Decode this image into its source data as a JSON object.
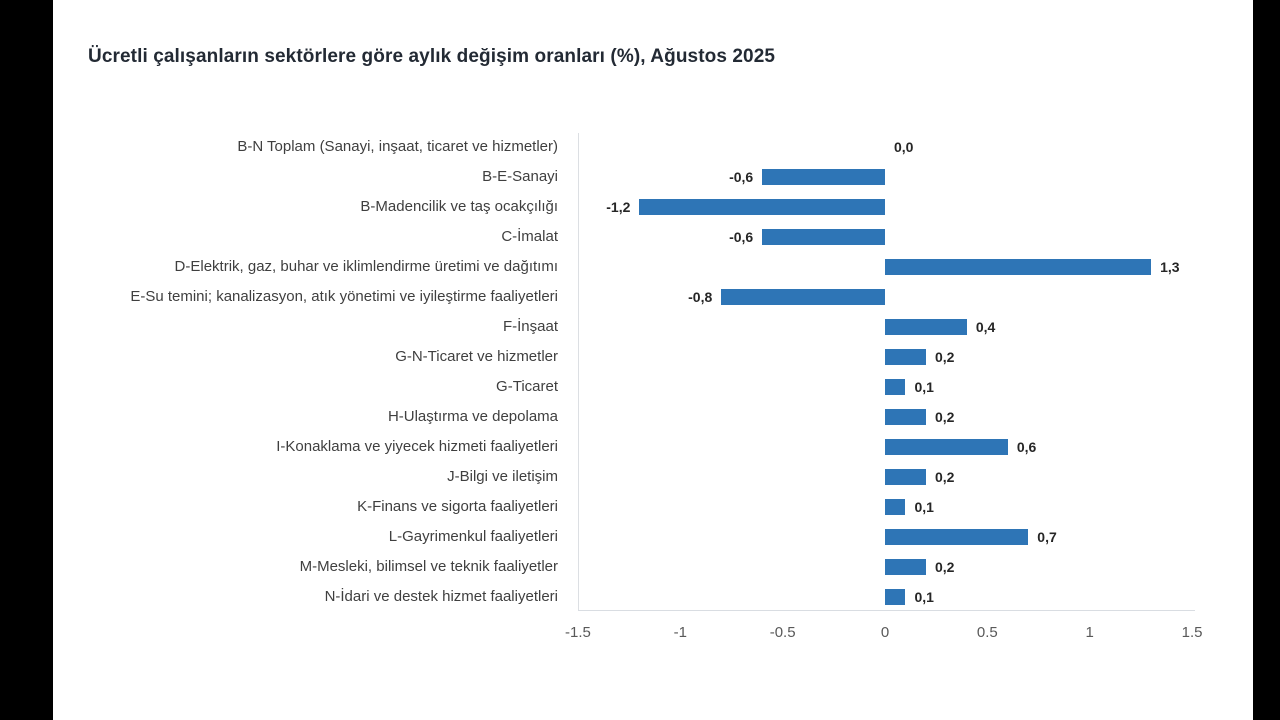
{
  "page": {
    "background": "#000000",
    "canvas_background": "#ffffff"
  },
  "header": {
    "title": "Ücretli çalışanların sektörlere göre aylık değişim oranları (%), Ağustos 2025"
  },
  "colors": {
    "bar": "#2e75b6",
    "title_text": "#232a34",
    "category_text": "#3f3f3f",
    "value_text": "#262626",
    "tick_text": "#595959",
    "axis_line": "#d9dde2"
  },
  "chart_data": {
    "type": "bar",
    "orientation": "horizontal",
    "title": "Ücretli çalışanların sektörlere göre aylık değişim oranları (%), Ağustos 2025",
    "categories": [
      "B-N Toplam (Sanayi, inşaat, ticaret ve hizmetler)",
      "B-E-Sanayi",
      "B-Madencilik ve taş ocakçılığı",
      "C-İmalat",
      "D-Elektrik, gaz, buhar ve iklimlendirme üretimi ve dağıtımı",
      "E-Su temini; kanalizasyon, atık yönetimi ve iyileştirme faaliyetleri",
      "F-İnşaat",
      "G-N-Ticaret ve hizmetler",
      "G-Ticaret",
      "H-Ulaştırma ve depolama",
      "I-Konaklama ve yiyecek hizmeti faaliyetleri",
      "J-Bilgi ve iletişim",
      "K-Finans ve sigorta faaliyetleri",
      "L-Gayrimenkul faaliyetleri",
      "M-Mesleki, bilimsel ve teknik faaliyetler",
      "N-İdari ve destek hizmet faaliyetleri"
    ],
    "values": [
      0.0,
      -0.6,
      -1.2,
      -0.6,
      1.3,
      -0.8,
      0.4,
      0.2,
      0.1,
      0.2,
      0.6,
      0.2,
      0.1,
      0.7,
      0.2,
      0.1
    ],
    "value_labels": [
      "0,0",
      "-0,6",
      "-1,2",
      "-0,6",
      "1,3",
      "-0,8",
      "0,4",
      "0,2",
      "0,1",
      "0,2",
      "0,6",
      "0,2",
      "0,1",
      "0,7",
      "0,2",
      "0,1"
    ],
    "xlabel": "",
    "ylabel": "",
    "xlim": [
      -1.5,
      1.5
    ],
    "x_ticks": [
      -1.5,
      -1,
      -0.5,
      0,
      0.5,
      1,
      1.5
    ],
    "x_tick_labels": [
      "-1.5",
      "-1",
      "-0.5",
      "0",
      "0.5",
      "1",
      "1.5"
    ],
    "grid": false,
    "legend": false,
    "bar_color": "#2e75b6"
  }
}
